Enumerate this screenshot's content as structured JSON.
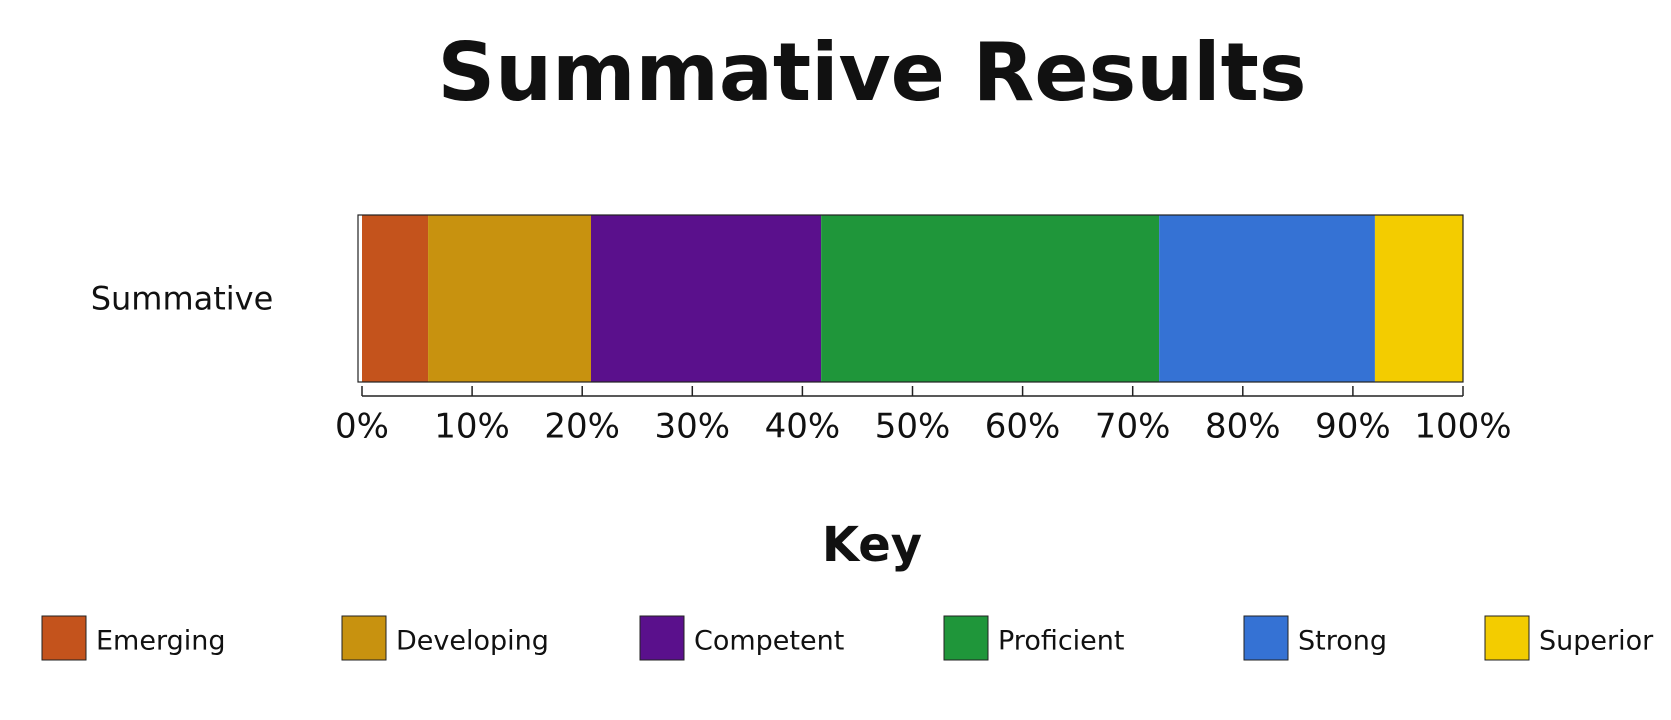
{
  "chart_data": {
    "type": "stacked-bar",
    "orientation": "horizontal",
    "title": "Summative Results",
    "categories": [
      "Summative"
    ],
    "series": [
      {
        "name": "Emerging",
        "color": "#c4531c",
        "values": [
          6
        ]
      },
      {
        "name": "Developing",
        "color": "#c8920f",
        "values": [
          14.8
        ]
      },
      {
        "name": "Competent",
        "color": "#5a108c",
        "values": [
          20.9
        ]
      },
      {
        "name": "Proficient",
        "color": "#1f963a",
        "values": [
          30.7
        ]
      },
      {
        "name": "Strong",
        "color": "#3572d4",
        "values": [
          19.6
        ]
      },
      {
        "name": "Superior",
        "color": "#f3cc00",
        "values": [
          8
        ]
      }
    ],
    "xlim": [
      0,
      100
    ],
    "xticks": [
      {
        "value": 0,
        "label": "0%"
      },
      {
        "value": 10,
        "label": "10%"
      },
      {
        "value": 20,
        "label": "20%"
      },
      {
        "value": 30,
        "label": "30%"
      },
      {
        "value": 40,
        "label": "40%"
      },
      {
        "value": 50,
        "label": "50%"
      },
      {
        "value": 60,
        "label": "60%"
      },
      {
        "value": 70,
        "label": "70%"
      },
      {
        "value": 80,
        "label": "80%"
      },
      {
        "value": 90,
        "label": "90%"
      },
      {
        "value": 100,
        "label": "100%"
      }
    ],
    "legend_title": "Key"
  }
}
